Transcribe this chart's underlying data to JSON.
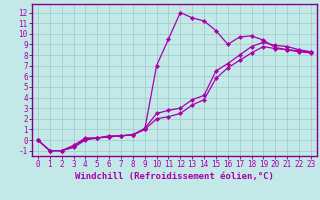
{
  "xlabel": "Windchill (Refroidissement éolien,°C)",
  "xlim": [
    -0.5,
    23.5
  ],
  "ylim": [
    -1.5,
    12.8
  ],
  "xticks": [
    0,
    1,
    2,
    3,
    4,
    5,
    6,
    7,
    8,
    9,
    10,
    11,
    12,
    13,
    14,
    15,
    16,
    17,
    18,
    19,
    20,
    21,
    22,
    23
  ],
  "yticks": [
    -1,
    0,
    1,
    2,
    3,
    4,
    5,
    6,
    7,
    8,
    9,
    10,
    11,
    12
  ],
  "bg_color": "#c2e8e8",
  "line_color": "#aa00aa",
  "marker": "D",
  "markersize": 2.2,
  "linewidth": 0.9,
  "series": [
    {
      "x": [
        0,
        1,
        2,
        3,
        4,
        5,
        6,
        7,
        8,
        9,
        10,
        11,
        12,
        13,
        14,
        15,
        16,
        17,
        18,
        19,
        20,
        21,
        22,
        23
      ],
      "y": [
        0,
        -1,
        -1,
        -0.7,
        0.0,
        0.2,
        0.3,
        0.4,
        0.5,
        1.0,
        7.0,
        9.5,
        12.0,
        11.5,
        11.2,
        10.3,
        9.0,
        9.7,
        9.8,
        9.4,
        8.7,
        8.5,
        8.4,
        8.3
      ]
    },
    {
      "x": [
        0,
        1,
        2,
        3,
        4,
        5,
        6,
        7,
        8,
        9,
        10,
        11,
        12,
        13,
        14,
        15,
        16,
        17,
        18,
        19,
        20,
        21,
        22,
        23
      ],
      "y": [
        0,
        -1,
        -1,
        -0.5,
        0.2,
        0.2,
        0.4,
        0.4,
        0.5,
        1.1,
        2.5,
        2.8,
        3.0,
        3.8,
        4.2,
        6.5,
        7.2,
        8.0,
        8.8,
        9.2,
        8.9,
        8.8,
        8.5,
        8.3
      ]
    },
    {
      "x": [
        0,
        1,
        2,
        3,
        4,
        5,
        6,
        7,
        8,
        9,
        10,
        11,
        12,
        13,
        14,
        15,
        16,
        17,
        18,
        19,
        20,
        21,
        22,
        23
      ],
      "y": [
        0,
        -1,
        -1,
        -0.6,
        0.1,
        0.2,
        0.3,
        0.4,
        0.5,
        1.0,
        2.0,
        2.2,
        2.5,
        3.3,
        3.8,
        5.8,
        6.8,
        7.5,
        8.2,
        8.8,
        8.6,
        8.5,
        8.3,
        8.2
      ]
    }
  ],
  "grid_color": "#a0c8c8",
  "tick_fontsize": 5.5,
  "label_fontsize": 6.5,
  "spine_color": "#880088"
}
